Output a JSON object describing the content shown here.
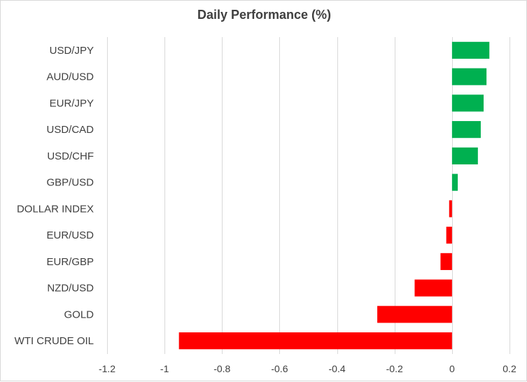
{
  "chart_data": {
    "type": "bar",
    "orientation": "horizontal",
    "title": "Daily Performance (%)",
    "categories": [
      "USD/JPY",
      "AUD/USD",
      "EUR/JPY",
      "USD/CAD",
      "USD/CHF",
      "GBP/USD",
      "DOLLAR INDEX",
      "EUR/USD",
      "EUR/GBP",
      "NZD/USD",
      "GOLD",
      "WTI CRUDE OIL"
    ],
    "values": [
      0.13,
      0.12,
      0.11,
      0.1,
      0.09,
      0.02,
      -0.01,
      -0.02,
      -0.04,
      -0.13,
      -0.26,
      -0.95
    ],
    "xlim": [
      -1.2,
      0.2
    ],
    "xticks": [
      "-1.2",
      "-1",
      "-0.8",
      "-0.6",
      "-0.4",
      "-0.2",
      "0",
      "0.2"
    ],
    "xtick_values": [
      -1.2,
      -1.0,
      -0.8,
      -0.6,
      -0.4,
      -0.2,
      0,
      0.2
    ],
    "grid": "vertical",
    "legend": "none",
    "colors": {
      "positive": "#00b050",
      "negative": "#ff0000",
      "grid": "#d9d9d9",
      "text": "#404040"
    }
  }
}
